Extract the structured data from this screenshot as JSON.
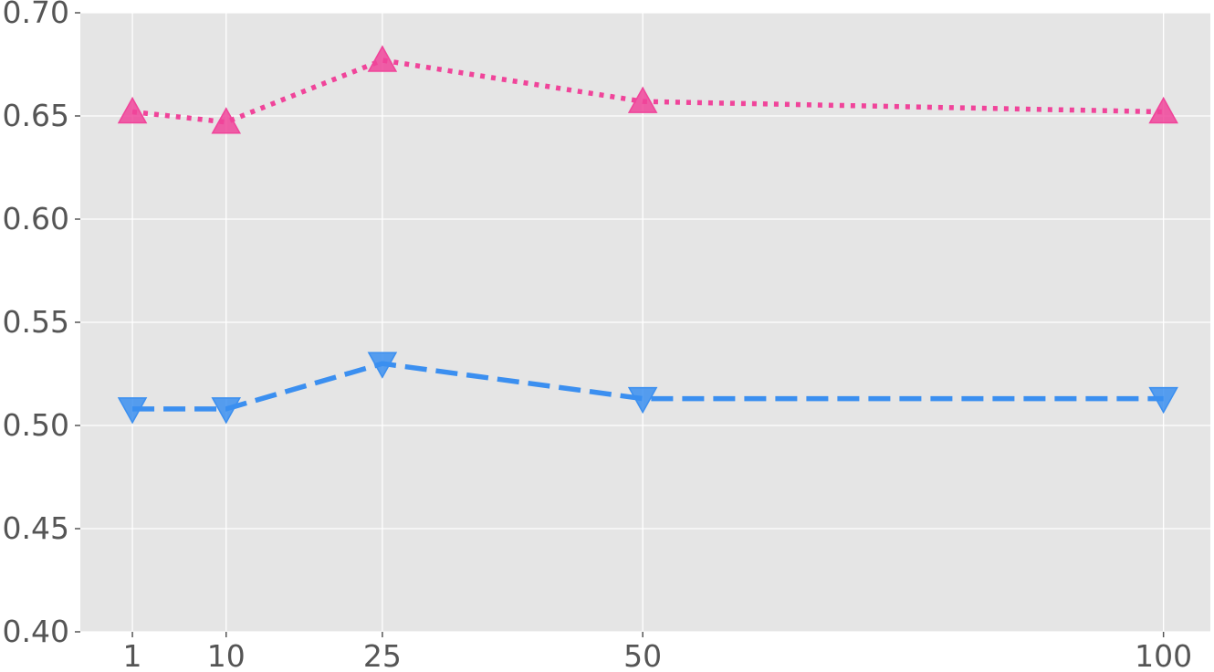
{
  "chart_data": {
    "type": "line",
    "title": "",
    "xlabel": "",
    "ylabel": "",
    "x": [
      1,
      10,
      25,
      50,
      100
    ],
    "xlim": [
      -4,
      104.5
    ],
    "ylim": [
      0.4,
      0.7
    ],
    "x_ticks": [
      1,
      10,
      25,
      50,
      100
    ],
    "x_tick_labels": [
      "1",
      "10",
      "25",
      "50",
      "100"
    ],
    "y_ticks": [
      0.4,
      0.45,
      0.5,
      0.55,
      0.6,
      0.65,
      0.7
    ],
    "y_tick_labels": [
      "0.40",
      "0.45",
      "0.50",
      "0.55",
      "0.60",
      "0.65",
      "0.70"
    ],
    "grid": true,
    "style": {
      "background": "#e5e5e5",
      "grid_color": "#ffffff",
      "tick_color": "#555555"
    },
    "series": [
      {
        "values": [
          0.652,
          0.647,
          0.677,
          0.657,
          0.652
        ],
        "color": "#f0449a",
        "marker": "triangle-up",
        "line_style": "dotted"
      },
      {
        "values": [
          0.508,
          0.508,
          0.53,
          0.513,
          0.513
        ],
        "color": "#3b8ff0",
        "marker": "triangle-down",
        "line_style": "dashed"
      }
    ]
  }
}
